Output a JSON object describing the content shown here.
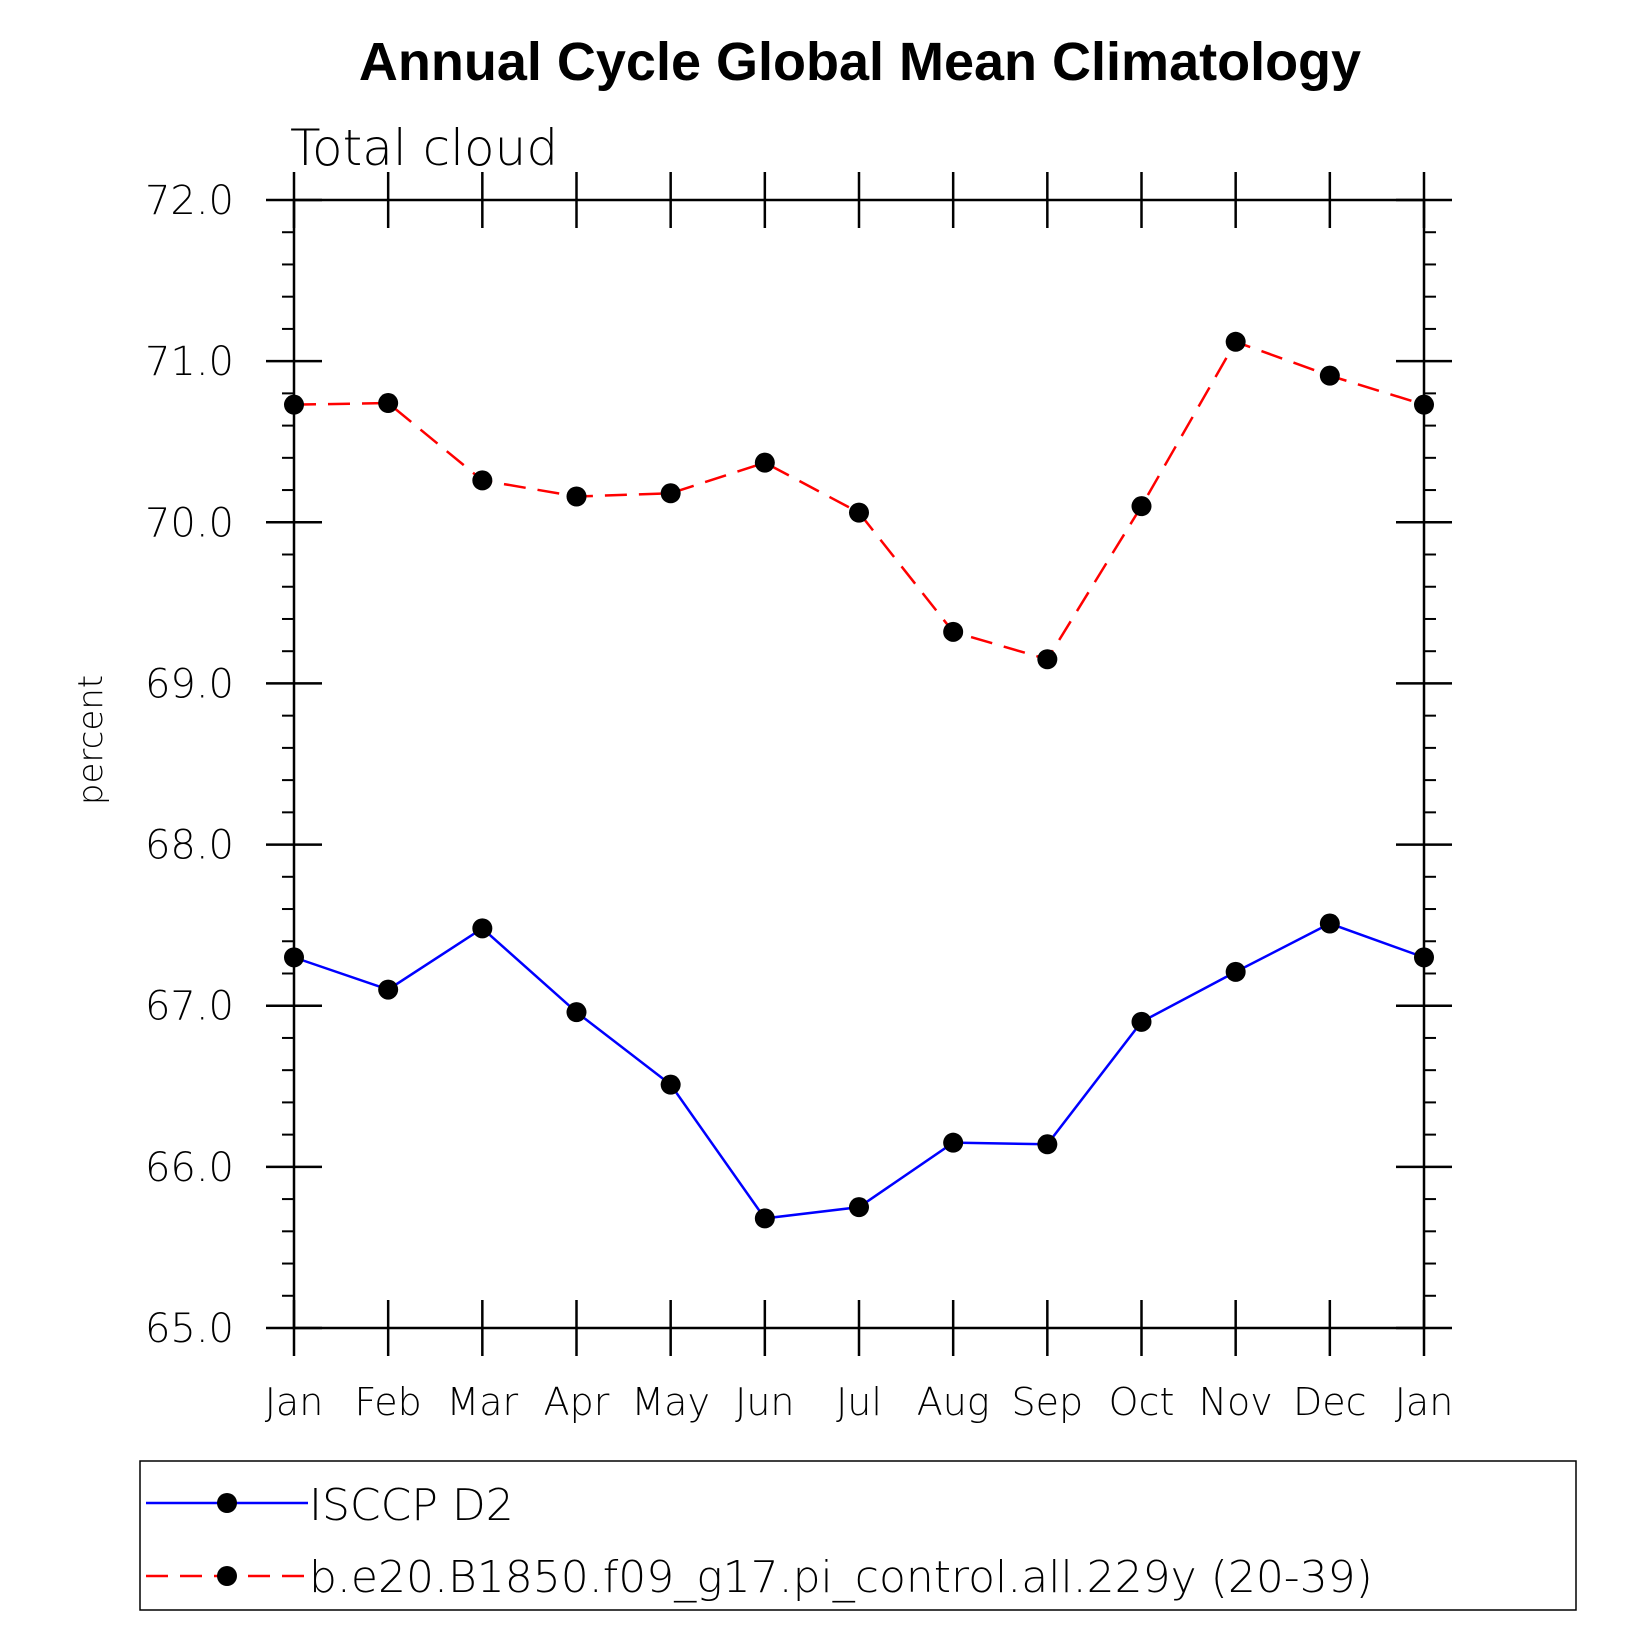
{
  "chart_data": {
    "type": "line",
    "title": "Annual Cycle Global Mean Climatology",
    "subtitle": "Total cloud",
    "xlabel": "",
    "ylabel": "percent",
    "ylim": [
      65.0,
      72.0
    ],
    "ytick_labels": [
      "65.0",
      "66.0",
      "67.0",
      "68.0",
      "69.0",
      "70.0",
      "71.0",
      "72.0"
    ],
    "categories": [
      "Jan",
      "Feb",
      "Mar",
      "Apr",
      "May",
      "Jun",
      "Jul",
      "Aug",
      "Sep",
      "Oct",
      "Nov",
      "Dec",
      "Jan"
    ],
    "grid": false,
    "legend_position": "bottom",
    "series": [
      {
        "name": "ISCCP D2",
        "color": "#0000ff",
        "line_style": "solid",
        "marker": "filled-circle",
        "values": [
          67.3,
          67.1,
          67.48,
          66.96,
          66.51,
          65.68,
          65.75,
          66.15,
          66.14,
          66.9,
          67.21,
          67.51,
          67.3
        ]
      },
      {
        "name": "b.e20.B1850.f09_g17.pi_control.all.229y (20-39)",
        "color": "#ff0000",
        "line_style": "dashed",
        "marker": "filled-circle",
        "values": [
          70.73,
          70.74,
          70.26,
          70.16,
          70.18,
          70.37,
          70.06,
          69.32,
          69.15,
          70.1,
          71.12,
          70.91,
          70.73
        ]
      }
    ]
  }
}
